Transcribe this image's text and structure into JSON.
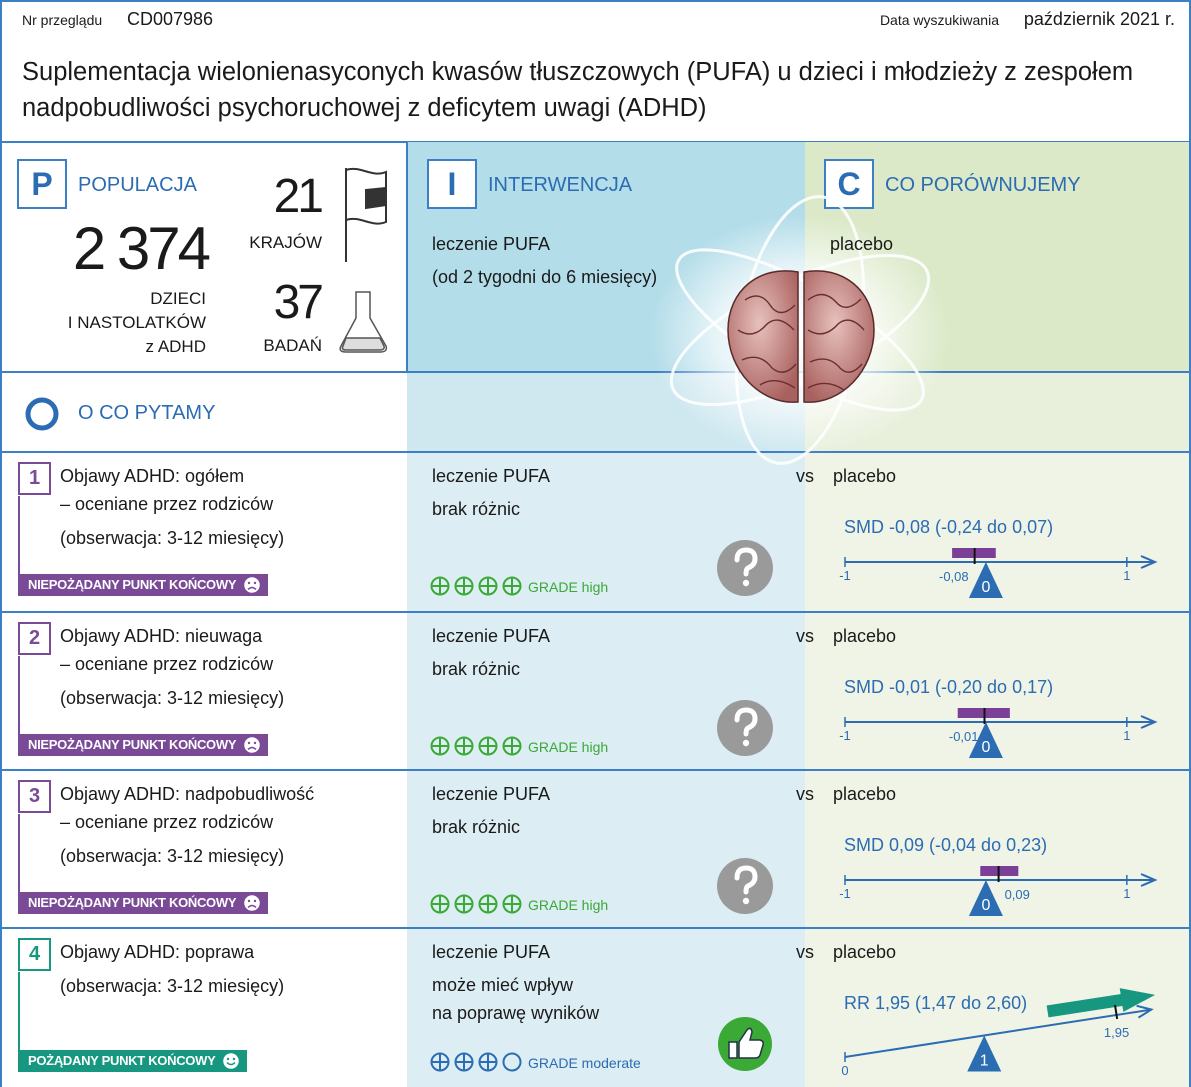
{
  "header": {
    "review_label": "Nr przeglądu",
    "review_id": "CD007986",
    "date_label": "Data wyszukiwania",
    "date": "październik 2021 r.",
    "title": "Suplementacja wielonienasyconych kwasów tłuszczowych (PUFA) u dzieci i młodzieży z zespołem nadpobudliwości psychoruchowej z deficytem uwagi (ADHD)"
  },
  "population": {
    "letter": "P",
    "heading": "POPULACJA",
    "participants": "2 374",
    "participants_label": [
      "DZIECI",
      "I NASTOLATKÓW",
      "z ADHD"
    ],
    "countries": "21",
    "countries_label": "KRAJÓW",
    "studies": "37",
    "studies_label": "BADAŃ"
  },
  "intervention": {
    "letter": "I",
    "heading": "INTERWENCJA",
    "lines": [
      "leczenie PUFA",
      "(od 2 tygodni do 6 miesięcy)"
    ]
  },
  "comparison": {
    "letter": "C",
    "heading": "CO PORÓWNUJEMY",
    "text": "placebo"
  },
  "outcomes": {
    "letter": "O",
    "heading": "O CO PYTAMY",
    "items": [
      {
        "number": "1",
        "lines": [
          "Objawy ADHD: ogółem",
          "– oceniane przez rodziców",
          "(obserwacja: 3-12 miesięcy)"
        ],
        "endpoint": "NIEPOŻĄDANY PUNKT KOŃCOWY",
        "desirable": false,
        "intervention": "leczenie PUFA",
        "vs": "vs",
        "comparator": "placebo",
        "result": [
          "brak różnic"
        ],
        "grade": "GRADE high",
        "certainty": 4,
        "effect": "SMD -0,08 (-0,24 do 0,07)",
        "plot": {
          "xlim": [
            -1,
            1.2
          ],
          "ticks": [
            -1,
            1
          ],
          "null": 0,
          "estimate": {
            "value": -0.08,
            "label": "-0,08"
          },
          "ci": [
            -0.24,
            0.07
          ]
        }
      },
      {
        "number": "2",
        "lines": [
          "Objawy ADHD: nieuwaga",
          "– oceniane przez rodziców",
          "(obserwacja: 3-12 miesięcy)"
        ],
        "endpoint": "NIEPOŻĄDANY PUNKT KOŃCOWY",
        "desirable": false,
        "intervention": "leczenie PUFA",
        "vs": "vs",
        "comparator": "placebo",
        "result": [
          "brak różnic"
        ],
        "grade": "GRADE high",
        "certainty": 4,
        "effect": "SMD -0,01 (-0,20 do 0,17)",
        "plot": {
          "xlim": [
            -1,
            1.2
          ],
          "ticks": [
            -1,
            1
          ],
          "null": 0,
          "estimate": {
            "value": -0.01,
            "label": "-0,01"
          },
          "ci": [
            -0.2,
            0.17
          ]
        }
      },
      {
        "number": "3",
        "lines": [
          "Objawy ADHD: nadpobudliwość",
          "– oceniane przez rodziców",
          "(obserwacja: 3-12 miesięcy)"
        ],
        "endpoint": "NIEPOŻĄDANY PUNKT KOŃCOWY",
        "desirable": false,
        "intervention": "leczenie PUFA",
        "vs": "vs",
        "comparator": "placebo",
        "result": [
          "brak różnic"
        ],
        "grade": "GRADE high",
        "certainty": 4,
        "effect": "SMD 0,09 (-0,04 do 0,23)",
        "plot": {
          "xlim": [
            -1,
            1.2
          ],
          "ticks": [
            -1,
            1
          ],
          "null": 0,
          "estimate": {
            "value": 0.09,
            "label": "0,09"
          },
          "ci": [
            -0.04,
            0.23
          ]
        }
      },
      {
        "number": "4",
        "lines": [
          "Objawy ADHD: poprawa",
          "(obserwacja: 3-12 miesięcy)"
        ],
        "endpoint": "POŻĄDANY PUNKT KOŃCOWY",
        "desirable": true,
        "intervention": "leczenie PUFA",
        "vs": "vs",
        "comparator": "placebo",
        "result": [
          "może mieć wpływ",
          "na poprawę wyników"
        ],
        "grade": "GRADE moderate",
        "certainty": 3,
        "effect": "RR 1,95 (1,47 do 2,60)",
        "plot": {
          "xlim": [
            0,
            2.2
          ],
          "ticks": [
            0
          ],
          "null": 1,
          "estimate": {
            "value": 1.95,
            "label": "1,95"
          },
          "ci": [
            1.47,
            2.6
          ]
        }
      }
    ]
  }
}
